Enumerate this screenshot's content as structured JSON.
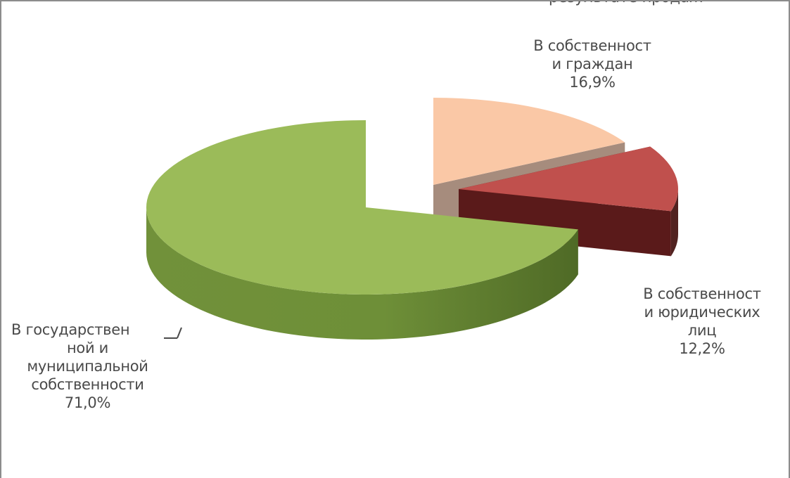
{
  "chart_data": {
    "type": "pie",
    "title": "",
    "slices": [
      {
        "label_lines": [
          "В государствен",
          "ной и",
          "муниципальной",
          "собственности"
        ],
        "value": 71.0,
        "value_label": "71,0%",
        "color": "#9bbb59"
      },
      {
        "label_lines": [
          "В собственност",
          "и граждан"
        ],
        "value": 16.9,
        "value_label": "16,9%",
        "color": "#fac8a6"
      },
      {
        "label_lines": [
          "В собственност",
          "и юридических",
          "лиц"
        ],
        "value": 12.2,
        "value_label": "12,2%",
        "color": "#c0504d"
      }
    ],
    "legend": "none"
  },
  "top_clipped_text": "результате продаж"
}
